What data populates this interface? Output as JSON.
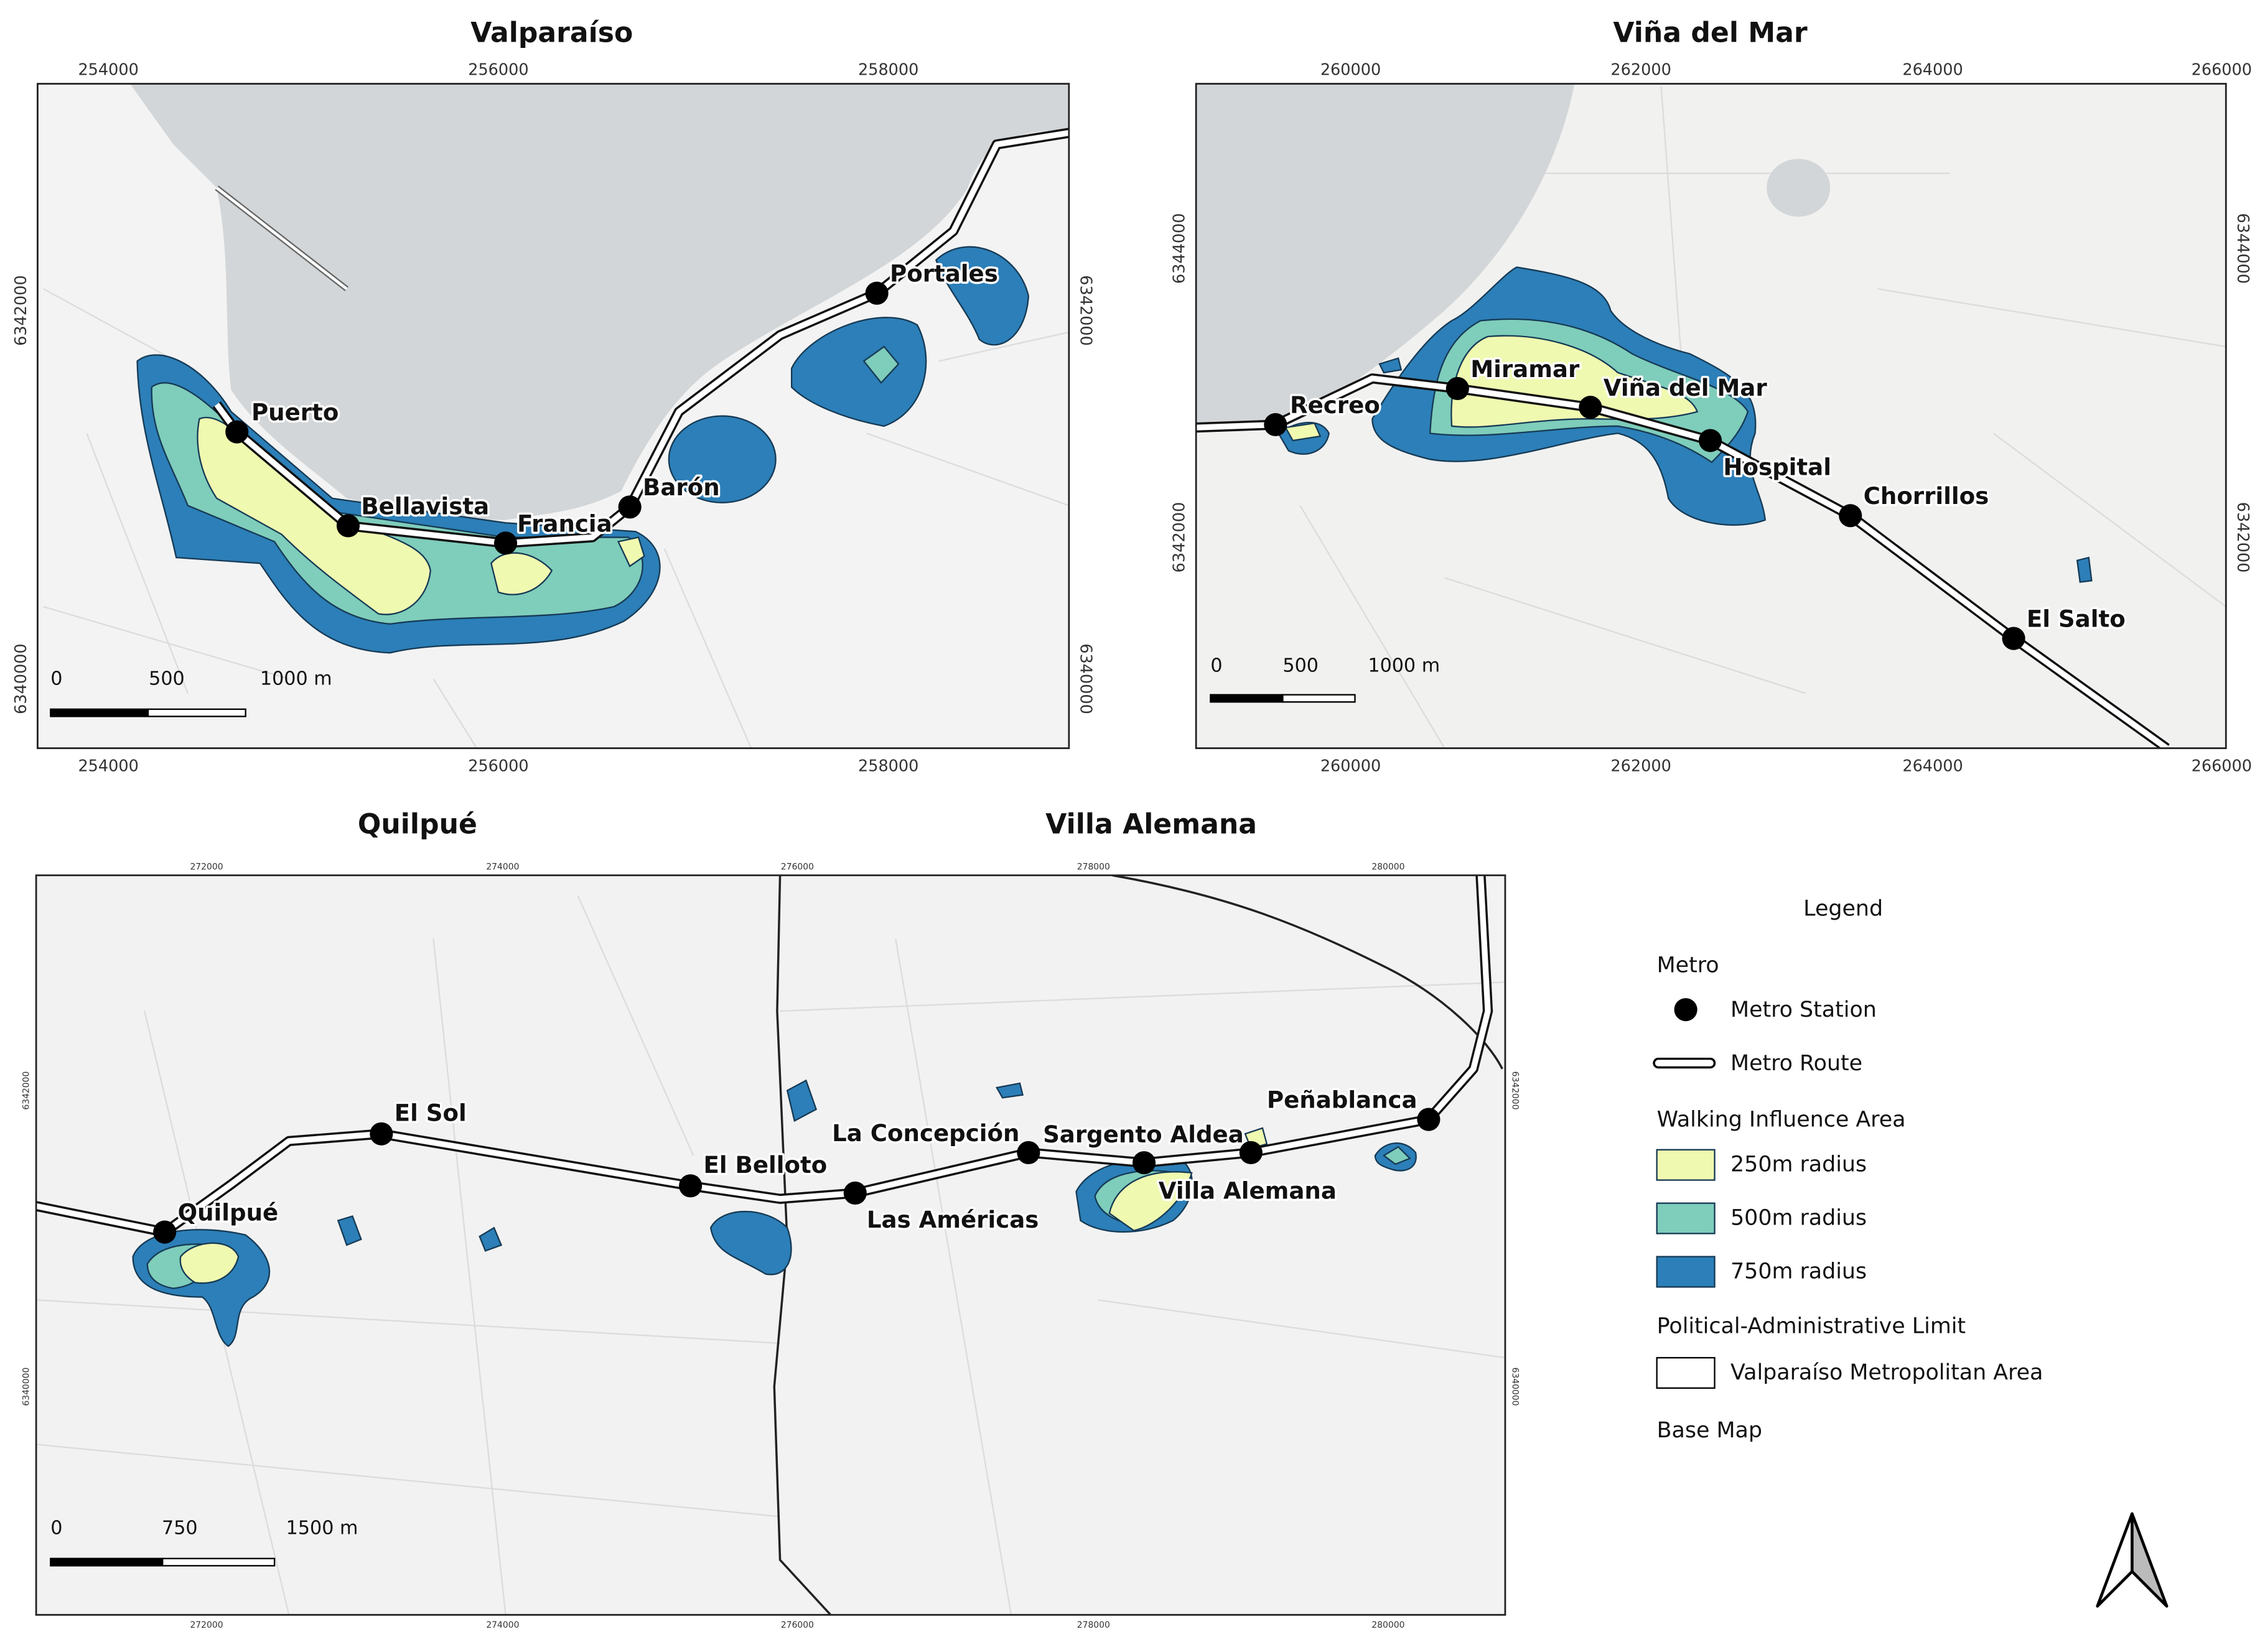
{
  "panels": [
    {
      "titles": [
        "Valparaíso"
      ],
      "x_ticks": [
        254000,
        256000,
        258000
      ],
      "y_ticks": [
        6342000,
        6340000
      ],
      "scale_labels": [
        "0",
        "500",
        "1000 m"
      ],
      "stations": [
        "Puerto",
        "Bellavista",
        "Francia",
        "Barón",
        "Portales"
      ]
    },
    {
      "titles": [
        "Viña del Mar"
      ],
      "x_ticks": [
        260000,
        262000,
        264000,
        266000
      ],
      "y_ticks": [
        6344000,
        6342000
      ],
      "scale_labels": [
        "0",
        "500",
        "1000 m"
      ],
      "stations": [
        "Recreo",
        "Miramar",
        "Viña del Mar",
        "Hospital",
        "Chorrillos",
        "El Salto"
      ]
    },
    {
      "titles": [
        "Quilpué",
        "Villa Alemana"
      ],
      "x_ticks": [
        272000,
        274000,
        276000,
        278000,
        280000
      ],
      "y_ticks": [
        6342000,
        6340000
      ],
      "scale_labels": [
        "0",
        "750",
        "1500 m"
      ],
      "stations": [
        "Quilpué",
        "El Sol",
        "El Belloto",
        "Las Américas",
        "La Concepción",
        "Sargento Aldea",
        "Villa Alemana",
        "Peñablanca"
      ]
    }
  ],
  "legend": {
    "title": "Legend",
    "metro": "Metro",
    "metro_station": "Metro Station",
    "metro_route": "Metro Route",
    "walking": "Walking Influence Area",
    "r250": "250m radius",
    "r500": "500m radius",
    "r750": "750m radius",
    "limit": "Political-Administrative Limit",
    "area": "Valparaíso Metropolitan Area",
    "base_map": "Base Map"
  }
}
